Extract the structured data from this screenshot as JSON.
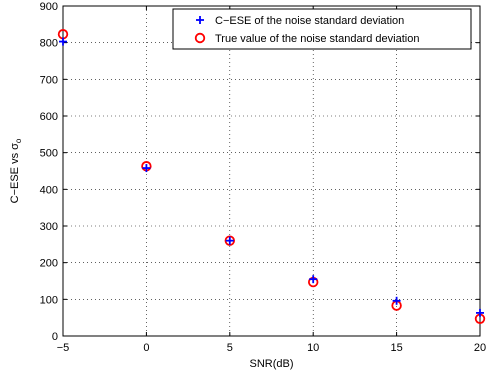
{
  "chart_data": {
    "type": "scatter",
    "xlabel": "SNR(dB)",
    "ylabel": "C−ESE vs σ",
    "ylabel_subscript": "o",
    "xlim": [
      -5,
      20
    ],
    "ylim": [
      0,
      900
    ],
    "xticks": [
      -5,
      0,
      5,
      10,
      15,
      20
    ],
    "xtick_labels": [
      "−5",
      "0",
      "5",
      "10",
      "15",
      "20"
    ],
    "yticks": [
      0,
      100,
      200,
      300,
      400,
      500,
      600,
      700,
      800,
      900
    ],
    "ytick_labels": [
      "0",
      "100",
      "200",
      "300",
      "400",
      "500",
      "600",
      "700",
      "800",
      "900"
    ],
    "grid": true,
    "legend_position": "top-right",
    "x": [
      -5,
      0,
      5,
      10,
      15,
      20
    ],
    "series": [
      {
        "name": "C−ESE of the noise standard deviation",
        "marker": "plus",
        "color": "#0000ff",
        "values": [
          803,
          458,
          260,
          155,
          96,
          63
        ]
      },
      {
        "name": "True value of the noise standard deviation",
        "marker": "circle",
        "color": "#ff0000",
        "values": [
          823,
          463,
          260,
          147,
          83,
          47
        ]
      }
    ]
  }
}
